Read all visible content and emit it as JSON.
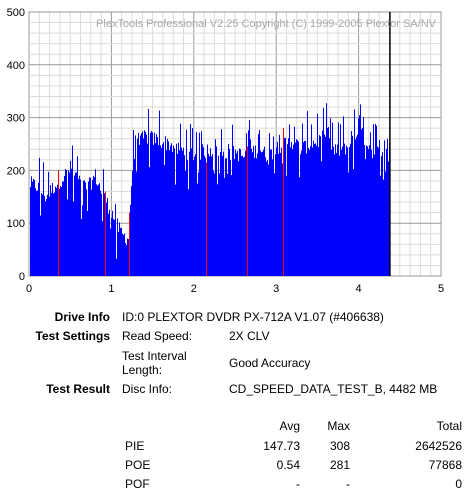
{
  "chart_data": {
    "type": "bar",
    "watermark": "PlexTools Professional V2.25 Copyright (C) 1999-2005 Plextor SA/NV",
    "xlim": [
      0,
      5
    ],
    "ylim": [
      0,
      500
    ],
    "x_ticks": [
      0,
      1,
      2,
      3,
      4,
      5
    ],
    "y_ticks": [
      0,
      100,
      200,
      300,
      400,
      500
    ],
    "grid": true,
    "end_marker_x": 4.38,
    "series": [
      {
        "color": "#0000ff",
        "x": [
          0,
          0.1,
          0.2,
          0.3,
          0.4,
          0.5,
          0.6,
          0.7,
          0.8,
          0.9,
          1.0,
          1.05,
          1.1,
          1.15,
          1.2,
          1.25,
          1.3,
          1.4,
          1.5,
          1.6,
          1.7,
          1.8,
          1.9,
          2.0,
          2.1,
          2.2,
          2.3,
          2.4,
          2.5,
          2.6,
          2.7,
          2.8,
          2.9,
          3.0,
          3.1,
          3.2,
          3.3,
          3.4,
          3.5,
          3.6,
          3.7,
          3.8,
          3.9,
          4.0,
          4.05,
          4.1,
          4.15,
          4.2,
          4.3,
          4.38
        ],
        "values": [
          175,
          170,
          150,
          170,
          185,
          205,
          180,
          165,
          190,
          150,
          120,
          100,
          85,
          75,
          70,
          205,
          245,
          265,
          260,
          255,
          250,
          240,
          235,
          230,
          235,
          240,
          230,
          225,
          235,
          225,
          235,
          240,
          225,
          245,
          250,
          255,
          240,
          250,
          255,
          265,
          235,
          240,
          250,
          275,
          265,
          250,
          240,
          230,
          245,
          260
        ]
      },
      {
        "color": "#ff0000",
        "x": [
          0.35,
          0.92,
          1.21,
          2.15,
          2.65,
          3.08
        ],
        "values": [
          200,
          160,
          120,
          215,
          245,
          280
        ]
      }
    ]
  },
  "info": {
    "drive_info_label": "Drive Info",
    "drive_info_value": "ID:0 PLEXTOR DVDR PX-712A V1.07 (#406638)",
    "test_settings_label": "Test Settings",
    "read_speed_label": "Read Speed:",
    "read_speed_value": "2X CLV",
    "interval_label_1": "Test Interval",
    "interval_label_2": "Length:",
    "interval_value": "Good Accuracy",
    "test_result_label": "Test Result",
    "disc_info_label": "Disc Info:",
    "disc_info_value": "CD_SPEED_DATA_TEST_B, 4482 MB"
  },
  "results_table": {
    "headers": [
      "Avg",
      "Max",
      "Total"
    ],
    "rows": [
      {
        "name": "PIE",
        "avg": "147.73",
        "max": "308",
        "total": "2642526"
      },
      {
        "name": "POE",
        "avg": "0.54",
        "max": "281",
        "total": "77868"
      },
      {
        "name": "POF",
        "avg": "-",
        "max": "-",
        "total": "0"
      }
    ]
  }
}
